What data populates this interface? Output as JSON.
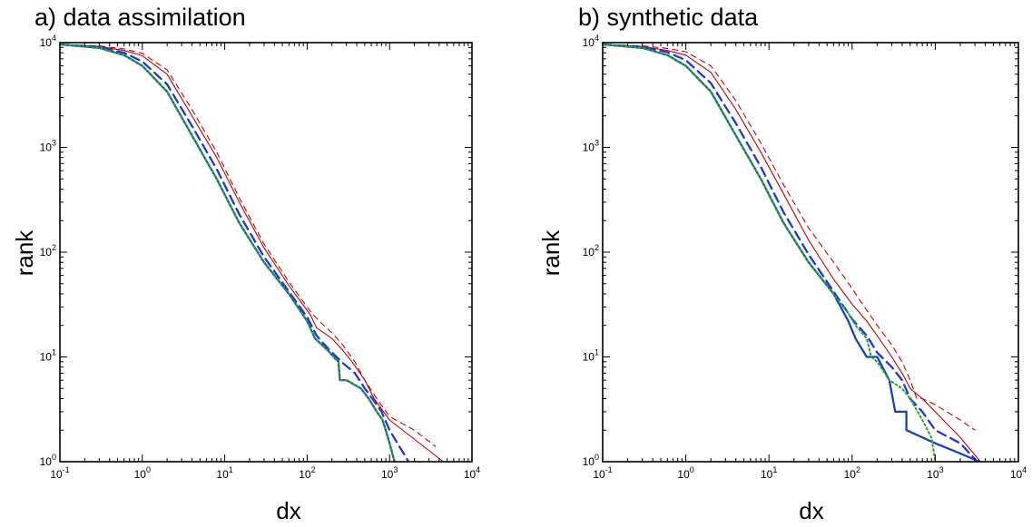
{
  "chart_data": [
    {
      "type": "line",
      "title": "a)  data assimilation",
      "xlabel": "dx",
      "ylabel": "rank",
      "xscale": "log",
      "yscale": "log",
      "xlim": [
        0.1,
        10000
      ],
      "ylim": [
        1,
        10000
      ],
      "xticks": [
        {
          "base": "10",
          "exp": "-1"
        },
        {
          "base": "10",
          "exp": "0"
        },
        {
          "base": "10",
          "exp": "1"
        },
        {
          "base": "10",
          "exp": "2"
        },
        {
          "base": "10",
          "exp": "3"
        },
        {
          "base": "10",
          "exp": "4"
        }
      ],
      "yticks": [
        {
          "base": "10",
          "exp": "0"
        },
        {
          "base": "10",
          "exp": "1"
        },
        {
          "base": "10",
          "exp": "2"
        },
        {
          "base": "10",
          "exp": "3"
        },
        {
          "base": "10",
          "exp": "4"
        }
      ],
      "grid": false,
      "series": [
        {
          "color": "#cc0000",
          "dash": "",
          "width": 1.1,
          "x": [
            0.1,
            0.3,
            0.6,
            1,
            2,
            4,
            8,
            15,
            30,
            60,
            110,
            130,
            200,
            260,
            350,
            500,
            650,
            1000,
            4500
          ],
          "y": [
            9600,
            9200,
            8400,
            7500,
            5000,
            2000,
            800,
            300,
            110,
            48,
            25,
            19,
            15,
            12,
            9,
            6,
            4,
            2.5,
            1
          ]
        },
        {
          "color": "#cc0000",
          "dash": "6,5",
          "width": 1.1,
          "x": [
            0.1,
            0.3,
            0.6,
            1,
            2,
            4,
            8,
            15,
            30,
            60,
            110,
            140,
            200,
            270,
            380,
            500,
            700,
            1000,
            2000,
            3600
          ],
          "y": [
            9600,
            9300,
            8700,
            7900,
            5500,
            2300,
            900,
            330,
            120,
            52,
            27,
            22,
            17,
            13,
            9,
            6,
            4,
            2.7,
            2,
            1.4
          ]
        },
        {
          "color": "#2233ee",
          "dash": "10,6",
          "width": 2.3,
          "x": [
            0.1,
            0.3,
            0.6,
            1,
            2,
            4,
            8,
            15,
            30,
            60,
            100,
            130,
            180,
            260,
            380,
            500,
            620,
            800,
            1000,
            1700
          ],
          "y": [
            9600,
            9100,
            8000,
            6600,
            4000,
            1600,
            620,
            230,
            90,
            42,
            24,
            16,
            12,
            9,
            7,
            5,
            4,
            3,
            2,
            1
          ]
        },
        {
          "color": "#1144cc",
          "dash": "",
          "width": 2.3,
          "x": [
            0.1,
            0.3,
            0.6,
            1,
            2,
            4,
            8,
            15,
            30,
            60,
            100,
            125,
            170,
            240,
            250,
            300,
            450,
            560,
            700,
            820,
            900,
            1000,
            1150
          ],
          "y": [
            9600,
            8900,
            7600,
            6000,
            3400,
            1300,
            500,
            190,
            80,
            40,
            22,
            15,
            12,
            9,
            6,
            6,
            5,
            4,
            3,
            2.5,
            2,
            1.5,
            1
          ]
        },
        {
          "color": "#22aa22",
          "dash": "2,3",
          "width": 2,
          "x": [
            0.1,
            0.3,
            0.6,
            1,
            2,
            4,
            8,
            15,
            30,
            60,
            100,
            125,
            170,
            240,
            250,
            300,
            450,
            560,
            700,
            820,
            900,
            1000,
            1150
          ],
          "y": [
            9600,
            8900,
            7600,
            6000,
            3400,
            1300,
            500,
            190,
            80,
            40,
            22,
            15,
            12,
            9,
            6,
            6,
            5,
            4,
            3,
            2.5,
            2,
            1.5,
            1
          ]
        }
      ]
    },
    {
      "type": "line",
      "title": "b) synthetic data",
      "xlabel": "dx",
      "ylabel": "rank",
      "xscale": "log",
      "yscale": "log",
      "xlim": [
        0.1,
        10000
      ],
      "ylim": [
        1,
        10000
      ],
      "xticks": [
        {
          "base": "10",
          "exp": "-1"
        },
        {
          "base": "10",
          "exp": "0"
        },
        {
          "base": "10",
          "exp": "1"
        },
        {
          "base": "10",
          "exp": "2"
        },
        {
          "base": "10",
          "exp": "3"
        },
        {
          "base": "10",
          "exp": "4"
        }
      ],
      "yticks": [
        {
          "base": "10",
          "exp": "0"
        },
        {
          "base": "10",
          "exp": "1"
        },
        {
          "base": "10",
          "exp": "2"
        },
        {
          "base": "10",
          "exp": "3"
        },
        {
          "base": "10",
          "exp": "4"
        }
      ],
      "grid": false,
      "series": [
        {
          "color": "#cc0000",
          "dash": "",
          "width": 1.1,
          "x": [
            0.1,
            0.3,
            0.6,
            1,
            2,
            4,
            8,
            15,
            30,
            60,
            100,
            150,
            200,
            300,
            400,
            500,
            700,
            1000,
            2000,
            3500
          ],
          "y": [
            9600,
            9200,
            8400,
            7600,
            5200,
            2300,
            900,
            360,
            130,
            55,
            32,
            22,
            16,
            10,
            7,
            5,
            4,
            3,
            1.7,
            1
          ]
        },
        {
          "color": "#cc0000",
          "dash": "6,5",
          "width": 1.1,
          "x": [
            0.1,
            0.3,
            0.6,
            1,
            2,
            4,
            8,
            15,
            30,
            60,
            100,
            150,
            200,
            300,
            400,
            500,
            600,
            700,
            1000,
            2000,
            3000
          ],
          "y": [
            9600,
            9300,
            8800,
            8200,
            6000,
            2800,
            1100,
            440,
            170,
            80,
            45,
            28,
            20,
            13,
            9,
            6,
            4,
            4,
            3.5,
            2.5,
            2
          ]
        },
        {
          "color": "#2233ee",
          "dash": "10,6",
          "width": 2.3,
          "x": [
            0.1,
            0.3,
            0.6,
            1,
            2,
            4,
            8,
            15,
            30,
            60,
            100,
            150,
            200,
            300,
            400,
            500,
            700,
            1000,
            2000,
            3200
          ],
          "y": [
            9600,
            9100,
            8100,
            6800,
            4100,
            1700,
            650,
            240,
            95,
            42,
            23,
            16,
            11,
            8,
            6,
            4,
            3,
            2,
            1.5,
            1
          ]
        },
        {
          "color": "#1144cc",
          "dash": "",
          "width": 2.3,
          "x": [
            0.1,
            0.3,
            0.6,
            1,
            2,
            4,
            8,
            15,
            30,
            60,
            90,
            110,
            150,
            200,
            280,
            330,
            450,
            450,
            1000,
            2000,
            3400
          ],
          "y": [
            9600,
            8900,
            7600,
            6000,
            3400,
            1300,
            500,
            190,
            80,
            40,
            22,
            15,
            10,
            10,
            6,
            3,
            3,
            2,
            1.5,
            1.2,
            1
          ]
        },
        {
          "color": "#22aa22",
          "dash": "2,3",
          "width": 2,
          "x": [
            0.1,
            0.3,
            0.6,
            1,
            2,
            4,
            8,
            15,
            30,
            60,
            90,
            110,
            150,
            170,
            200,
            280,
            400,
            500,
            700,
            900,
            1000
          ],
          "y": [
            9600,
            8900,
            7600,
            6000,
            3400,
            1300,
            500,
            190,
            80,
            40,
            26,
            20,
            15,
            10,
            9,
            6,
            5,
            4,
            2.5,
            1.7,
            1
          ]
        }
      ]
    }
  ]
}
